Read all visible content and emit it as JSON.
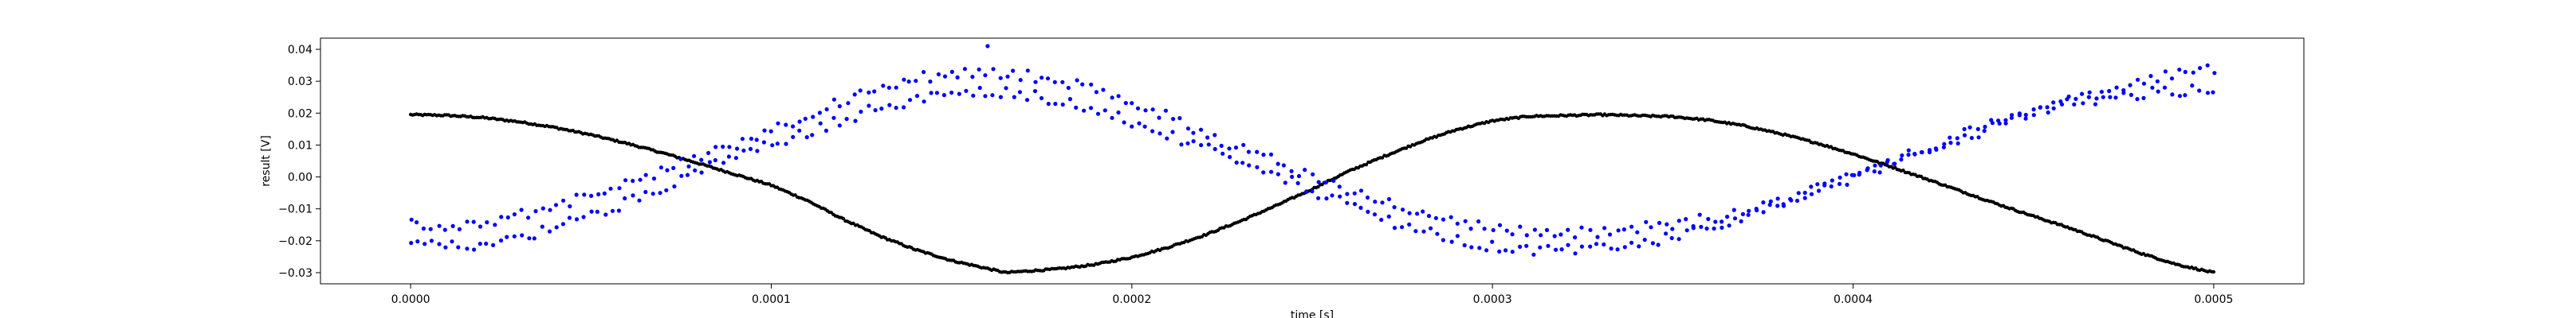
{
  "chart_data": {
    "type": "scatter",
    "title": "",
    "xlabel": "time [s]",
    "ylabel": "result [V]",
    "xlim": [
      -2.5e-05,
      0.000525
    ],
    "ylim": [
      -0.0335,
      0.0435
    ],
    "x_ticks": [
      0.0,
      0.0001,
      0.0002,
      0.0003,
      0.0004,
      0.0005
    ],
    "x_tick_labels": [
      "0.0000",
      "0.0001",
      "0.0002",
      "0.0003",
      "0.0004",
      "0.0005"
    ],
    "y_ticks": [
      -0.03,
      -0.02,
      -0.01,
      0.0,
      0.01,
      0.02,
      0.03,
      0.04
    ],
    "y_tick_labels": [
      "−0.03",
      "−0.02",
      "−0.01",
      "0.00",
      "0.01",
      "0.02",
      "0.03",
      "0.04"
    ],
    "grid": false,
    "legend": "none",
    "series": [
      {
        "color": "#000000",
        "marker": "dot",
        "description_points": "dense black points (roughly continuous curve)",
        "x": [
          0.0,
          1e-05,
          2e-05,
          3e-05,
          4e-05,
          5e-05,
          6e-05,
          7e-05,
          8e-05,
          9e-05,
          0.0001,
          0.00011,
          0.00012,
          0.00013,
          0.00014,
          0.00015,
          0.000165,
          0.00018,
          0.00019,
          0.0002,
          0.00021,
          0.00022,
          0.00023,
          0.00024,
          0.00025,
          0.00026,
          0.00027,
          0.00028,
          0.00029,
          0.0003,
          0.00031,
          0.00033,
          0.00035,
          0.00036,
          0.00037,
          0.00038,
          0.00039,
          0.0004,
          0.00041,
          0.00042,
          0.00043,
          0.00044,
          0.00045,
          0.00046,
          0.00047,
          0.00048,
          0.00049,
          0.0005
        ],
        "y": [
          0.0195,
          0.0193,
          0.0186,
          0.0173,
          0.0155,
          0.0132,
          0.0105,
          0.0075,
          0.0042,
          0.0008,
          -0.0026,
          -0.0074,
          -0.0133,
          -0.0185,
          -0.0228,
          -0.0262,
          -0.03,
          -0.0288,
          -0.0274,
          -0.0252,
          -0.0221,
          -0.0183,
          -0.0139,
          -0.009,
          -0.0038,
          0.0017,
          0.0065,
          0.011,
          0.0148,
          0.0176,
          0.019,
          0.0195,
          0.0189,
          0.0178,
          0.016,
          0.0135,
          0.0106,
          0.0072,
          0.0034,
          -0.0005,
          -0.0045,
          -0.0085,
          -0.0123,
          -0.016,
          -0.02,
          -0.024,
          -0.0275,
          -0.03
        ]
      },
      {
        "color": "#0000ff",
        "marker": "dot",
        "description_points": "blue scatter, two interleaved noisy bands",
        "x": [
          0.0,
          1e-05,
          2e-05,
          3e-05,
          4e-05,
          5e-05,
          6e-05,
          7e-05,
          8e-05,
          9e-05,
          0.0001,
          0.00011,
          0.00012,
          0.00013,
          0.00014,
          0.00015,
          0.00016,
          0.00017,
          0.00018,
          0.00019,
          0.0002,
          0.00021,
          0.00022,
          0.00023,
          0.00024,
          0.00025,
          0.00026,
          0.00027,
          0.00028,
          0.00029,
          0.0003,
          0.00031,
          0.00032,
          0.00033,
          0.00034,
          0.00035,
          0.00036,
          0.00037,
          0.00038,
          0.00039,
          0.0004,
          0.00041,
          0.00042,
          0.00043,
          0.00044,
          0.00045,
          0.00046,
          0.00047,
          0.00048,
          0.00049,
          0.0005
        ],
        "y_upper": [
          -0.015,
          -0.016,
          -0.014,
          -0.012,
          -0.009,
          -0.006,
          -0.002,
          0.002,
          0.006,
          0.01,
          0.015,
          0.019,
          0.024,
          0.028,
          0.031,
          0.032,
          0.033,
          0.032,
          0.03,
          0.027,
          0.023,
          0.019,
          0.014,
          0.009,
          0.005,
          0.0,
          -0.004,
          -0.008,
          -0.011,
          -0.014,
          -0.016,
          -0.017,
          -0.018,
          -0.017,
          -0.016,
          -0.015,
          -0.013,
          -0.011,
          -0.008,
          -0.004,
          0.0,
          0.004,
          0.008,
          0.012,
          0.016,
          0.02,
          0.024,
          0.027,
          0.03,
          0.032,
          0.034
        ],
        "y_lower": [
          -0.021,
          -0.022,
          -0.021,
          -0.019,
          -0.016,
          -0.012,
          -0.008,
          -0.003,
          0.002,
          0.006,
          0.01,
          0.014,
          0.018,
          0.022,
          0.024,
          0.026,
          0.027,
          0.026,
          0.024,
          0.021,
          0.017,
          0.013,
          0.009,
          0.004,
          0.0,
          -0.004,
          -0.009,
          -0.013,
          -0.017,
          -0.02,
          -0.022,
          -0.023,
          -0.023,
          -0.022,
          -0.021,
          -0.019,
          -0.016,
          -0.012,
          -0.008,
          -0.004,
          0.001,
          0.005,
          0.009,
          0.013,
          0.017,
          0.02,
          0.023,
          0.025,
          0.026,
          0.027,
          0.028
        ],
        "outliers": [
          [
            0.00016,
            0.041
          ]
        ]
      }
    ]
  }
}
